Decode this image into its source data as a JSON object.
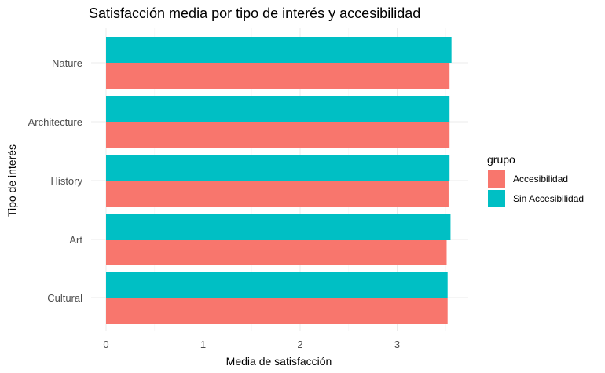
{
  "chart_data": {
    "type": "bar",
    "orientation": "horizontal",
    "title": "Satisfacción media por tipo de interés y accesibilidad",
    "xlabel": "Media de satisfacción",
    "ylabel": "Tipo de interés",
    "categories": [
      "Nature",
      "Architecture",
      "History",
      "Art",
      "Cultural"
    ],
    "series": [
      {
        "name": "Accesibilidad",
        "color": "#F8766D",
        "values": [
          3.54,
          3.54,
          3.53,
          3.51,
          3.52
        ]
      },
      {
        "name": "Sin Accesibilidad",
        "color": "#00BFC4",
        "values": [
          3.56,
          3.54,
          3.54,
          3.55,
          3.52
        ]
      }
    ],
    "xlim": [
      0,
      3.56
    ],
    "xticks": [
      0,
      1,
      2,
      3
    ],
    "grid": true,
    "legend": {
      "title": "grupo",
      "position": "right"
    }
  }
}
